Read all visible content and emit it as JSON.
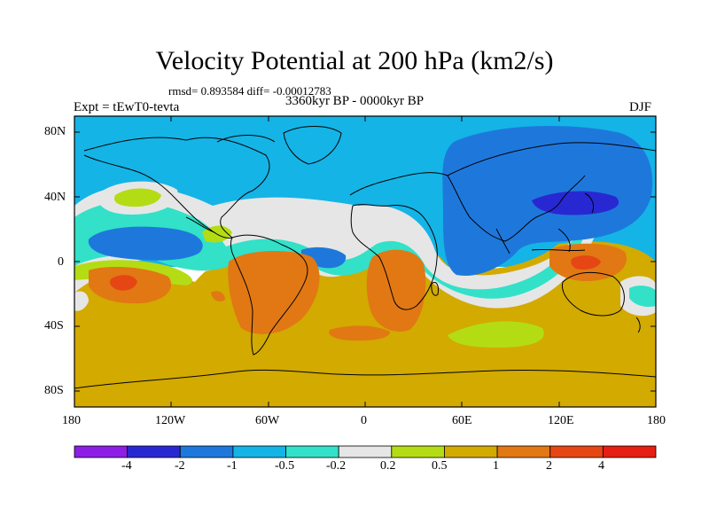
{
  "header": {
    "title": "Velocity Potential at 200 hPa (km2/s)",
    "stats": "rmsd= 0.893584 diff= -0.00012783",
    "period": "3360kyr BP - 0000kyr BP",
    "experiment": "Expt = tEwT0-tevta",
    "season": "DJF"
  },
  "axes": {
    "lat_ticks": [
      "80N",
      "40N",
      "0",
      "40S",
      "80S"
    ],
    "lon_ticks": [
      "180",
      "120W",
      "60W",
      "0",
      "60E",
      "120E",
      "180"
    ]
  },
  "colorbar": {
    "labels": [
      "-4",
      "-2",
      "-1",
      "-0.5",
      "-0.2",
      "0.2",
      "0.5",
      "1",
      "2",
      "4"
    ],
    "colors": [
      "#8c1ee6",
      "#2828d2",
      "#1e78dc",
      "#14b4e6",
      "#32e1c8",
      "#e6e6e6",
      "#b4dc14",
      "#d2aa00",
      "#e17814",
      "#e64614",
      "#e61e14"
    ]
  },
  "map_colors": {
    "level_-2": "#2828d2",
    "level_-1": "#1e78dc",
    "level_-0.5": "#14b4e6",
    "level_-0.2": "#32e1c8",
    "level_0": "#e6e6e6",
    "level_0.2": "#b4dc14",
    "level_0.5": "#d2aa00",
    "level_1": "#e17814",
    "level_2": "#e64614"
  }
}
